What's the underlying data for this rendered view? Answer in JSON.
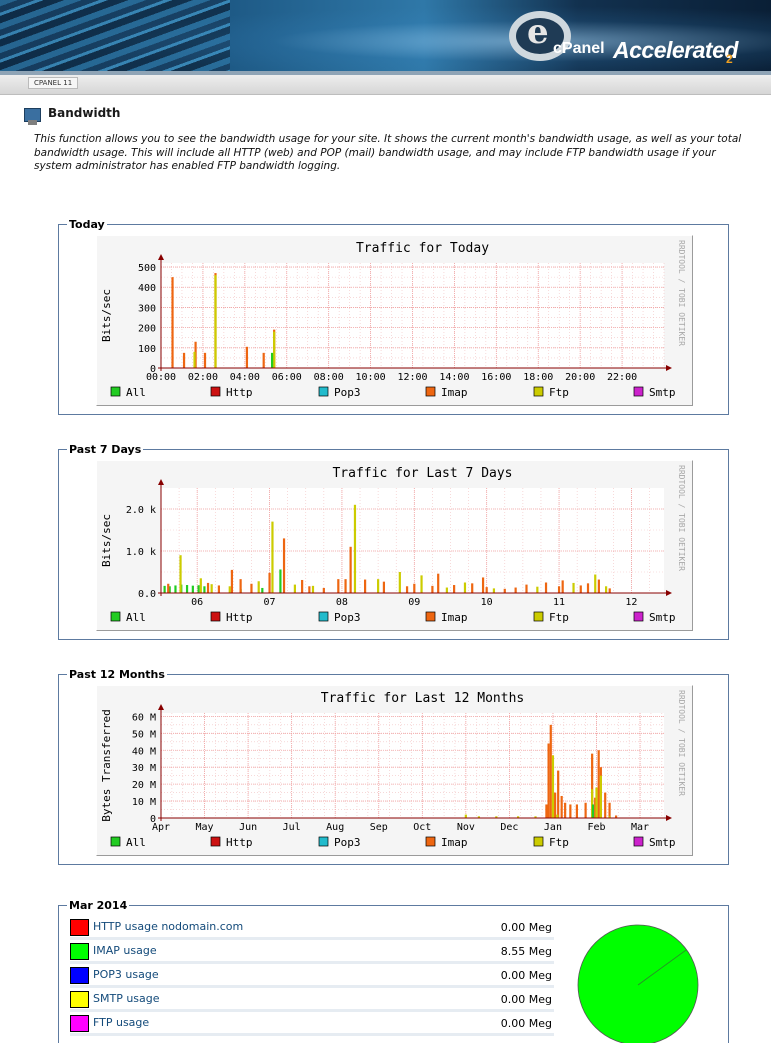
{
  "colors": {
    "all": "#22cc22",
    "http": "#cc1111",
    "pop3": "#22bbcc",
    "imap": "#ee6611",
    "ftp": "#cccc00",
    "smtp": "#cc22cc",
    "grid_red": "#f0a0a0",
    "axis_red": "#880000",
    "fieldset_border": "#5d7aa0",
    "link": "#134a7a"
  },
  "banner": {
    "brand": "cPanel",
    "product": "Accelerated",
    "product_suffix": "2"
  },
  "version_label": "CPANEL 11",
  "page": {
    "title": "Bandwidth",
    "intro": "This function allows you to see the bandwidth usage for your site. It shows the current month's bandwidth usage, as well as your total bandwidth usage. This will include all HTTP (web) and POP (mail) bandwidth usage, and may include FTP bandwidth usage if your system administrator has enabled FTP bandwidth logging."
  },
  "sections": {
    "today": {
      "legend": "Today"
    },
    "week": {
      "legend": "Past 7 Days"
    },
    "year": {
      "legend": "Past 12 Months"
    },
    "month": {
      "legend": "Mar 2014"
    }
  },
  "graph_legend": [
    "All",
    "Http",
    "Pop3",
    "Imap",
    "Ftp",
    "Smtp"
  ],
  "watermark": "RRDTOOL / TOBI OETIKER",
  "chart_data": [
    {
      "id": "today",
      "type": "bar",
      "title": "Traffic for Today",
      "ylabel": "Bits/sec",
      "x_unit": "hour",
      "x_range": [
        0,
        24
      ],
      "x_ticks": [
        0,
        2,
        4,
        6,
        8,
        10,
        12,
        14,
        16,
        18,
        20,
        22
      ],
      "x_tick_labels": [
        "00:00",
        "02:00",
        "04:00",
        "06:00",
        "08:00",
        "10:00",
        "12:00",
        "14:00",
        "16:00",
        "18:00",
        "20:00",
        "22:00"
      ],
      "ylim": [
        0,
        520
      ],
      "y_ticks": [
        0,
        100,
        200,
        300,
        400,
        500
      ],
      "y_tick_labels": [
        "0",
        "100",
        "200",
        "300",
        "400",
        "500"
      ],
      "grid": true,
      "series": [
        {
          "name": "Imap",
          "color": "#ee6611",
          "points": [
            [
              0.55,
              450
            ],
            [
              1.1,
              75
            ],
            [
              1.65,
              130
            ],
            [
              2.1,
              75
            ],
            [
              2.6,
              470
            ],
            [
              4.1,
              105
            ],
            [
              4.9,
              75
            ],
            [
              5.4,
              190
            ]
          ]
        },
        {
          "name": "Ftp",
          "color": "#cccc00",
          "points": [
            [
              1.6,
              80
            ],
            [
              2.6,
              460
            ],
            [
              5.4,
              180
            ]
          ]
        },
        {
          "name": "All",
          "color": "#22cc22",
          "points": [
            [
              5.3,
              75
            ]
          ]
        }
      ]
    },
    {
      "id": "week",
      "type": "bar",
      "title": "Traffic for Last 7 Days",
      "ylabel": "Bits/sec",
      "x_unit": "day",
      "x_range": [
        5.5,
        12.45
      ],
      "x_ticks": [
        6,
        7,
        8,
        9,
        10,
        11,
        12
      ],
      "x_tick_labels": [
        "06",
        "07",
        "08",
        "09",
        "10",
        "11",
        "12"
      ],
      "ylim": [
        0,
        2500
      ],
      "y_ticks": [
        0,
        1000,
        2000
      ],
      "y_tick_labels": [
        "0.0",
        "1.0 k",
        "2.0 k"
      ],
      "grid": true,
      "series": [
        {
          "name": "All",
          "color": "#22cc22",
          "points": [
            [
              5.55,
              170
            ],
            [
              5.62,
              160
            ],
            [
              5.7,
              180
            ],
            [
              5.78,
              200
            ],
            [
              5.86,
              190
            ],
            [
              5.94,
              175
            ],
            [
              6.02,
              185
            ],
            [
              6.1,
              160
            ],
            [
              6.6,
              90
            ],
            [
              6.9,
              120
            ],
            [
              7.15,
              560
            ]
          ]
        },
        {
          "name": "Ftp",
          "color": "#cccc00",
          "points": [
            [
              5.77,
              900
            ],
            [
              6.05,
              350
            ],
            [
              6.2,
              210
            ],
            [
              6.45,
              160
            ],
            [
              6.85,
              280
            ],
            [
              7.04,
              1700
            ],
            [
              7.35,
              200
            ],
            [
              7.6,
              170
            ],
            [
              8.18,
              2100
            ],
            [
              8.5,
              330
            ],
            [
              8.8,
              500
            ],
            [
              9.1,
              420
            ],
            [
              9.45,
              130
            ],
            [
              9.7,
              250
            ],
            [
              10.1,
              110
            ],
            [
              10.7,
              150
            ],
            [
              11.2,
              240
            ],
            [
              11.5,
              440
            ],
            [
              11.65,
              160
            ]
          ]
        },
        {
          "name": "Imap",
          "color": "#ee6611",
          "points": [
            [
              5.6,
              220
            ],
            [
              6.15,
              240
            ],
            [
              6.3,
              180
            ],
            [
              6.48,
              550
            ],
            [
              6.6,
              330
            ],
            [
              6.75,
              220
            ],
            [
              7.0,
              480
            ],
            [
              7.2,
              1300
            ],
            [
              7.45,
              310
            ],
            [
              7.55,
              160
            ],
            [
              7.75,
              120
            ],
            [
              7.95,
              330
            ],
            [
              8.05,
              330
            ],
            [
              8.12,
              1100
            ],
            [
              8.32,
              320
            ],
            [
              8.58,
              270
            ],
            [
              8.9,
              160
            ],
            [
              9.0,
              220
            ],
            [
              9.25,
              170
            ],
            [
              9.33,
              460
            ],
            [
              9.55,
              190
            ],
            [
              9.8,
              230
            ],
            [
              9.95,
              370
            ],
            [
              10.0,
              140
            ],
            [
              10.25,
              100
            ],
            [
              10.4,
              130
            ],
            [
              10.55,
              200
            ],
            [
              10.82,
              250
            ],
            [
              11.0,
              160
            ],
            [
              11.05,
              300
            ],
            [
              11.3,
              180
            ],
            [
              11.4,
              230
            ],
            [
              11.55,
              320
            ],
            [
              11.7,
              110
            ]
          ]
        }
      ]
    },
    {
      "id": "year",
      "type": "bar",
      "title": "Traffic for Last 12 Months",
      "ylabel": "Bytes Transferred",
      "x_unit": "month",
      "x_range": [
        0,
        11.55
      ],
      "x_ticks": [
        0,
        1,
        2,
        3,
        4,
        5,
        6,
        7,
        8,
        9,
        10,
        11
      ],
      "x_tick_labels": [
        "Apr",
        "May",
        "Jun",
        "Jul",
        "Aug",
        "Sep",
        "Oct",
        "Nov",
        "Dec",
        "Jan",
        "Feb",
        "Mar"
      ],
      "ylim": [
        0,
        62
      ],
      "y_ticks": [
        0,
        10,
        20,
        30,
        40,
        50,
        60
      ],
      "y_tick_labels": [
        "0",
        "10 M",
        "20 M",
        "30 M",
        "40 M",
        "50 M",
        "60 M"
      ],
      "grid": true,
      "series": [
        {
          "name": "Imap",
          "color": "#ee6611",
          "points": [
            [
              8.85,
              8
            ],
            [
              8.9,
              44
            ],
            [
              8.95,
              55
            ],
            [
              9.05,
              15
            ],
            [
              9.12,
              28
            ],
            [
              9.2,
              13
            ],
            [
              9.28,
              9
            ],
            [
              9.4,
              8
            ],
            [
              9.55,
              8
            ],
            [
              9.75,
              9
            ],
            [
              9.9,
              38
            ],
            [
              9.97,
              12
            ],
            [
              10.05,
              40
            ],
            [
              10.1,
              30
            ],
            [
              10.2,
              15
            ],
            [
              10.3,
              9
            ],
            [
              10.45,
              1.5
            ]
          ]
        },
        {
          "name": "Ftp",
          "color": "#cccc00",
          "points": [
            [
              7.0,
              2
            ],
            [
              7.3,
              1
            ],
            [
              7.7,
              1
            ],
            [
              8.2,
              1
            ],
            [
              8.6,
              1
            ],
            [
              9.0,
              37
            ],
            [
              9.1,
              2
            ],
            [
              9.9,
              17
            ],
            [
              10.0,
              18
            ],
            [
              10.1,
              25
            ],
            [
              10.3,
              1
            ]
          ]
        },
        {
          "name": "All",
          "color": "#22cc22",
          "points": [
            [
              9.92,
              8
            ]
          ]
        }
      ]
    },
    {
      "id": "month-pie",
      "type": "pie",
      "labels": [
        "HTTP",
        "IMAP",
        "POP3",
        "SMTP",
        "FTP"
      ],
      "values": [
        0.0,
        8.55,
        0.0,
        0.0,
        0.0
      ],
      "colors": [
        "#ff0000",
        "#00ff00",
        "#0000ff",
        "#ffff00",
        "#ff00ff"
      ]
    }
  ],
  "usage": [
    {
      "label": "HTTP usage nodomain.com",
      "value": "0.00 Meg",
      "color": "#ff0000"
    },
    {
      "label": "IMAP usage",
      "value": "8.55 Meg",
      "color": "#00ff00"
    },
    {
      "label": "POP3 usage",
      "value": "0.00 Meg",
      "color": "#0000ff"
    },
    {
      "label": "SMTP usage",
      "value": "0.00 Meg",
      "color": "#ffff00"
    },
    {
      "label": "FTP usage",
      "value": "0.00 Meg",
      "color": "#ff00ff"
    }
  ]
}
